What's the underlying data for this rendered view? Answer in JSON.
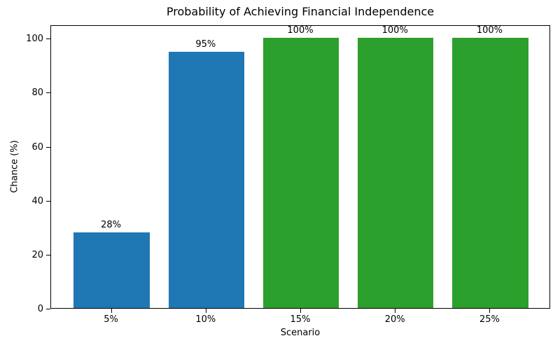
{
  "chart_data": {
    "type": "bar",
    "title": "Probability of Achieving Financial Independence",
    "xlabel": "Scenario",
    "ylabel": "Chance (%)",
    "categories": [
      "5%",
      "10%",
      "15%",
      "20%",
      "25%"
    ],
    "values": [
      28,
      95,
      100,
      100,
      100
    ],
    "bar_labels": [
      "28%",
      "95%",
      "100%",
      "100%",
      "100%"
    ],
    "bar_colors": [
      "#1f77b4",
      "#1f77b4",
      "#2ca02c",
      "#2ca02c",
      "#2ca02c"
    ],
    "ylim": [
      0,
      105
    ],
    "yticks": [
      0,
      20,
      40,
      60,
      80,
      100
    ],
    "grid": false,
    "legend_position": "none",
    "bar_width_fraction": 0.8,
    "colors": {
      "blue_bar": "#1f77b4",
      "green_bar": "#2ca02c",
      "axis": "#000000",
      "background": "#ffffff"
    }
  }
}
